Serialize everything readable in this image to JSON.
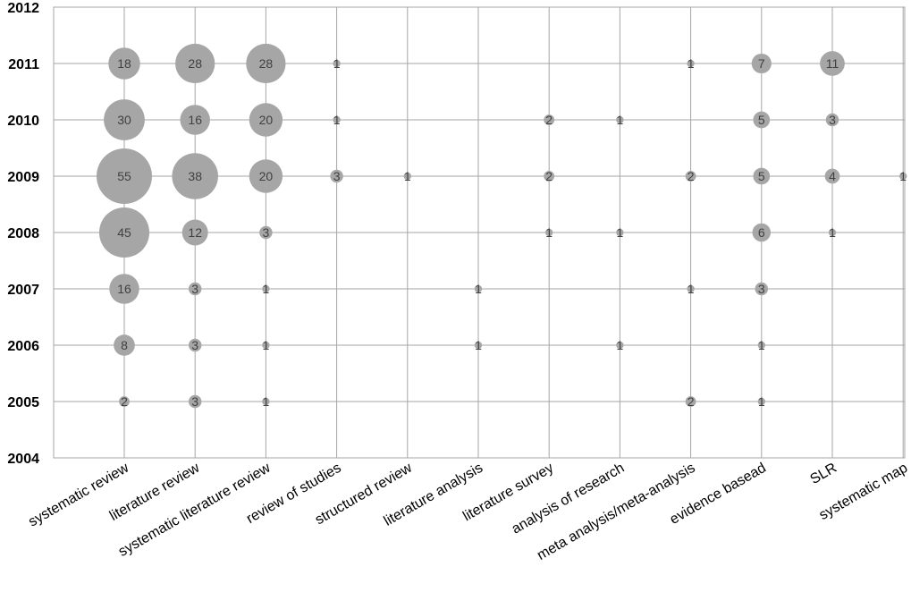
{
  "chart_data": {
    "type": "scatter",
    "subtype": "bubble",
    "title": "",
    "xlabel": "",
    "ylabel": "",
    "categories": [
      "systematic review",
      "literature review",
      "systematic literature review",
      "review of studies",
      "structured review",
      "literature analysis",
      "literature survey",
      "analysis of research",
      "meta analysis/meta-analysis",
      "evidence basead",
      "SLR",
      "systematic map"
    ],
    "yticks": [
      "2004",
      "2005",
      "2006",
      "2007",
      "2008",
      "2009",
      "2010",
      "2011",
      "2012"
    ],
    "ylim": [
      2004,
      2012
    ],
    "grid": true,
    "bubble_color": "#a6a6a6",
    "grid_color": "#a6a6a6",
    "points": [
      {
        "category": "systematic review",
        "year": 2011,
        "value": 18
      },
      {
        "category": "systematic review",
        "year": 2010,
        "value": 30
      },
      {
        "category": "systematic review",
        "year": 2009,
        "value": 55
      },
      {
        "category": "systematic review",
        "year": 2008,
        "value": 45
      },
      {
        "category": "systematic review",
        "year": 2007,
        "value": 16
      },
      {
        "category": "systematic review",
        "year": 2006,
        "value": 8
      },
      {
        "category": "systematic review",
        "year": 2005,
        "value": 2
      },
      {
        "category": "literature review",
        "year": 2011,
        "value": 28
      },
      {
        "category": "literature review",
        "year": 2010,
        "value": 16
      },
      {
        "category": "literature review",
        "year": 2009,
        "value": 38
      },
      {
        "category": "literature review",
        "year": 2008,
        "value": 12
      },
      {
        "category": "literature review",
        "year": 2007,
        "value": 3
      },
      {
        "category": "literature review",
        "year": 2006,
        "value": 3
      },
      {
        "category": "literature review",
        "year": 2005,
        "value": 3
      },
      {
        "category": "systematic literature review",
        "year": 2011,
        "value": 28
      },
      {
        "category": "systematic literature review",
        "year": 2010,
        "value": 20
      },
      {
        "category": "systematic literature review",
        "year": 2009,
        "value": 20
      },
      {
        "category": "systematic literature review",
        "year": 2008,
        "value": 3
      },
      {
        "category": "systematic literature review",
        "year": 2007,
        "value": 1
      },
      {
        "category": "systematic literature review",
        "year": 2006,
        "value": 1
      },
      {
        "category": "systematic literature review",
        "year": 2005,
        "value": 1
      },
      {
        "category": "review of studies",
        "year": 2011,
        "value": 1
      },
      {
        "category": "review of studies",
        "year": 2010,
        "value": 1
      },
      {
        "category": "review of studies",
        "year": 2009,
        "value": 3
      },
      {
        "category": "structured review",
        "year": 2009,
        "value": 1
      },
      {
        "category": "literature analysis",
        "year": 2007,
        "value": 1
      },
      {
        "category": "literature analysis",
        "year": 2006,
        "value": 1
      },
      {
        "category": "literature survey",
        "year": 2010,
        "value": 2
      },
      {
        "category": "literature survey",
        "year": 2009,
        "value": 2
      },
      {
        "category": "literature survey",
        "year": 2008,
        "value": 1
      },
      {
        "category": "analysis of research",
        "year": 2010,
        "value": 1
      },
      {
        "category": "analysis of research",
        "year": 2008,
        "value": 1
      },
      {
        "category": "analysis of research",
        "year": 2006,
        "value": 1
      },
      {
        "category": "meta analysis/meta-analysis",
        "year": 2011,
        "value": 1
      },
      {
        "category": "meta analysis/meta-analysis",
        "year": 2009,
        "value": 2
      },
      {
        "category": "meta analysis/meta-analysis",
        "year": 2007,
        "value": 1
      },
      {
        "category": "meta analysis/meta-analysis",
        "year": 2005,
        "value": 2
      },
      {
        "category": "evidence basead",
        "year": 2011,
        "value": 7
      },
      {
        "category": "evidence basead",
        "year": 2010,
        "value": 5
      },
      {
        "category": "evidence basead",
        "year": 2009,
        "value": 5
      },
      {
        "category": "evidence basead",
        "year": 2008,
        "value": 6
      },
      {
        "category": "evidence basead",
        "year": 2007,
        "value": 3
      },
      {
        "category": "evidence basead",
        "year": 2006,
        "value": 1
      },
      {
        "category": "evidence basead",
        "year": 2005,
        "value": 1
      },
      {
        "category": "SLR",
        "year": 2011,
        "value": 11
      },
      {
        "category": "SLR",
        "year": 2010,
        "value": 3
      },
      {
        "category": "SLR",
        "year": 2009,
        "value": 4
      },
      {
        "category": "SLR",
        "year": 2008,
        "value": 1
      },
      {
        "category": "systematic map",
        "year": 2009,
        "value": 1
      }
    ]
  }
}
